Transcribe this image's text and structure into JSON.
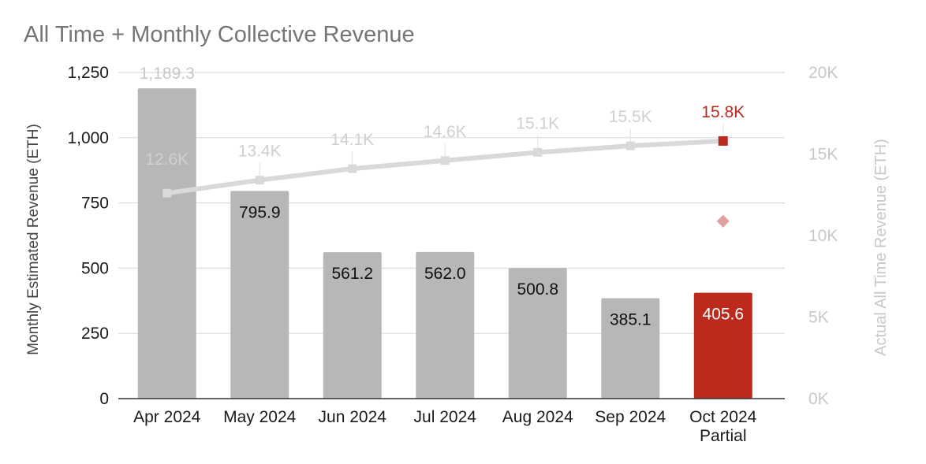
{
  "chart_data": {
    "type": "bar",
    "title": "All Time + Monthly Collective Revenue",
    "categories": [
      [
        "Apr 2024"
      ],
      [
        "May 2024"
      ],
      [
        "Jun 2024"
      ],
      [
        "Jul 2024"
      ],
      [
        "Aug 2024"
      ],
      [
        "Sep 2024"
      ],
      [
        "Oct 2024",
        "Partial"
      ]
    ],
    "series": [
      {
        "name": "Monthly Estimated Revenue (ETH)",
        "type": "bar",
        "axis": "left",
        "values": [
          1189.3,
          795.9,
          561.2,
          562.0,
          500.8,
          385.1,
          405.6
        ],
        "labels": [
          "1,189.3",
          "795.9",
          "561.2",
          "562.0",
          "500.8",
          "385.1",
          "405.6"
        ],
        "color": "#b7b7b7",
        "highlight_index": 6,
        "highlight_color": "#bc2a1e"
      },
      {
        "name": "Actual All Time Revenue (ETH)",
        "type": "line",
        "axis": "right",
        "values": [
          12600,
          13400,
          14100,
          14600,
          15100,
          15500,
          15800
        ],
        "labels": [
          "12.6K",
          "13.4K",
          "14.1K",
          "14.6K",
          "15.1K",
          "15.5K",
          "15.8K"
        ],
        "color": "#d9d9d9",
        "highlight_index": 6,
        "highlight_color": "#bc2a1e"
      }
    ],
    "projection_marker": {
      "category_index": 6,
      "value": 680,
      "axis": "left",
      "color": "#e0a0a0"
    },
    "left_axis": {
      "label": "Monthly Estimated Revenue (ETH)",
      "range": [
        0,
        1250
      ],
      "ticks": [
        0,
        250,
        500,
        750,
        1000,
        1250
      ],
      "tick_labels": [
        "0",
        "250",
        "500",
        "750",
        "1,000",
        "1,250"
      ]
    },
    "right_axis": {
      "label": "Actual All Time Revenue (ETH)",
      "range": [
        0,
        20000
      ],
      "ticks": [
        0,
        5000,
        10000,
        15000,
        20000
      ],
      "tick_labels": [
        "0K",
        "5K",
        "10K",
        "15K",
        "20K"
      ]
    },
    "grid": true,
    "legend": "none"
  },
  "colors": {
    "title": "#757575",
    "grid": "#dcdcdc",
    "axis_text": "#1a1a1a",
    "right_axis_text": "#c8c8c8",
    "bar_label_top": "#c8c8c8",
    "bar_label_inside": "#111111",
    "line_label": "#d0d0d0",
    "connector": "#e4e4e4",
    "baseline": "#333333"
  }
}
